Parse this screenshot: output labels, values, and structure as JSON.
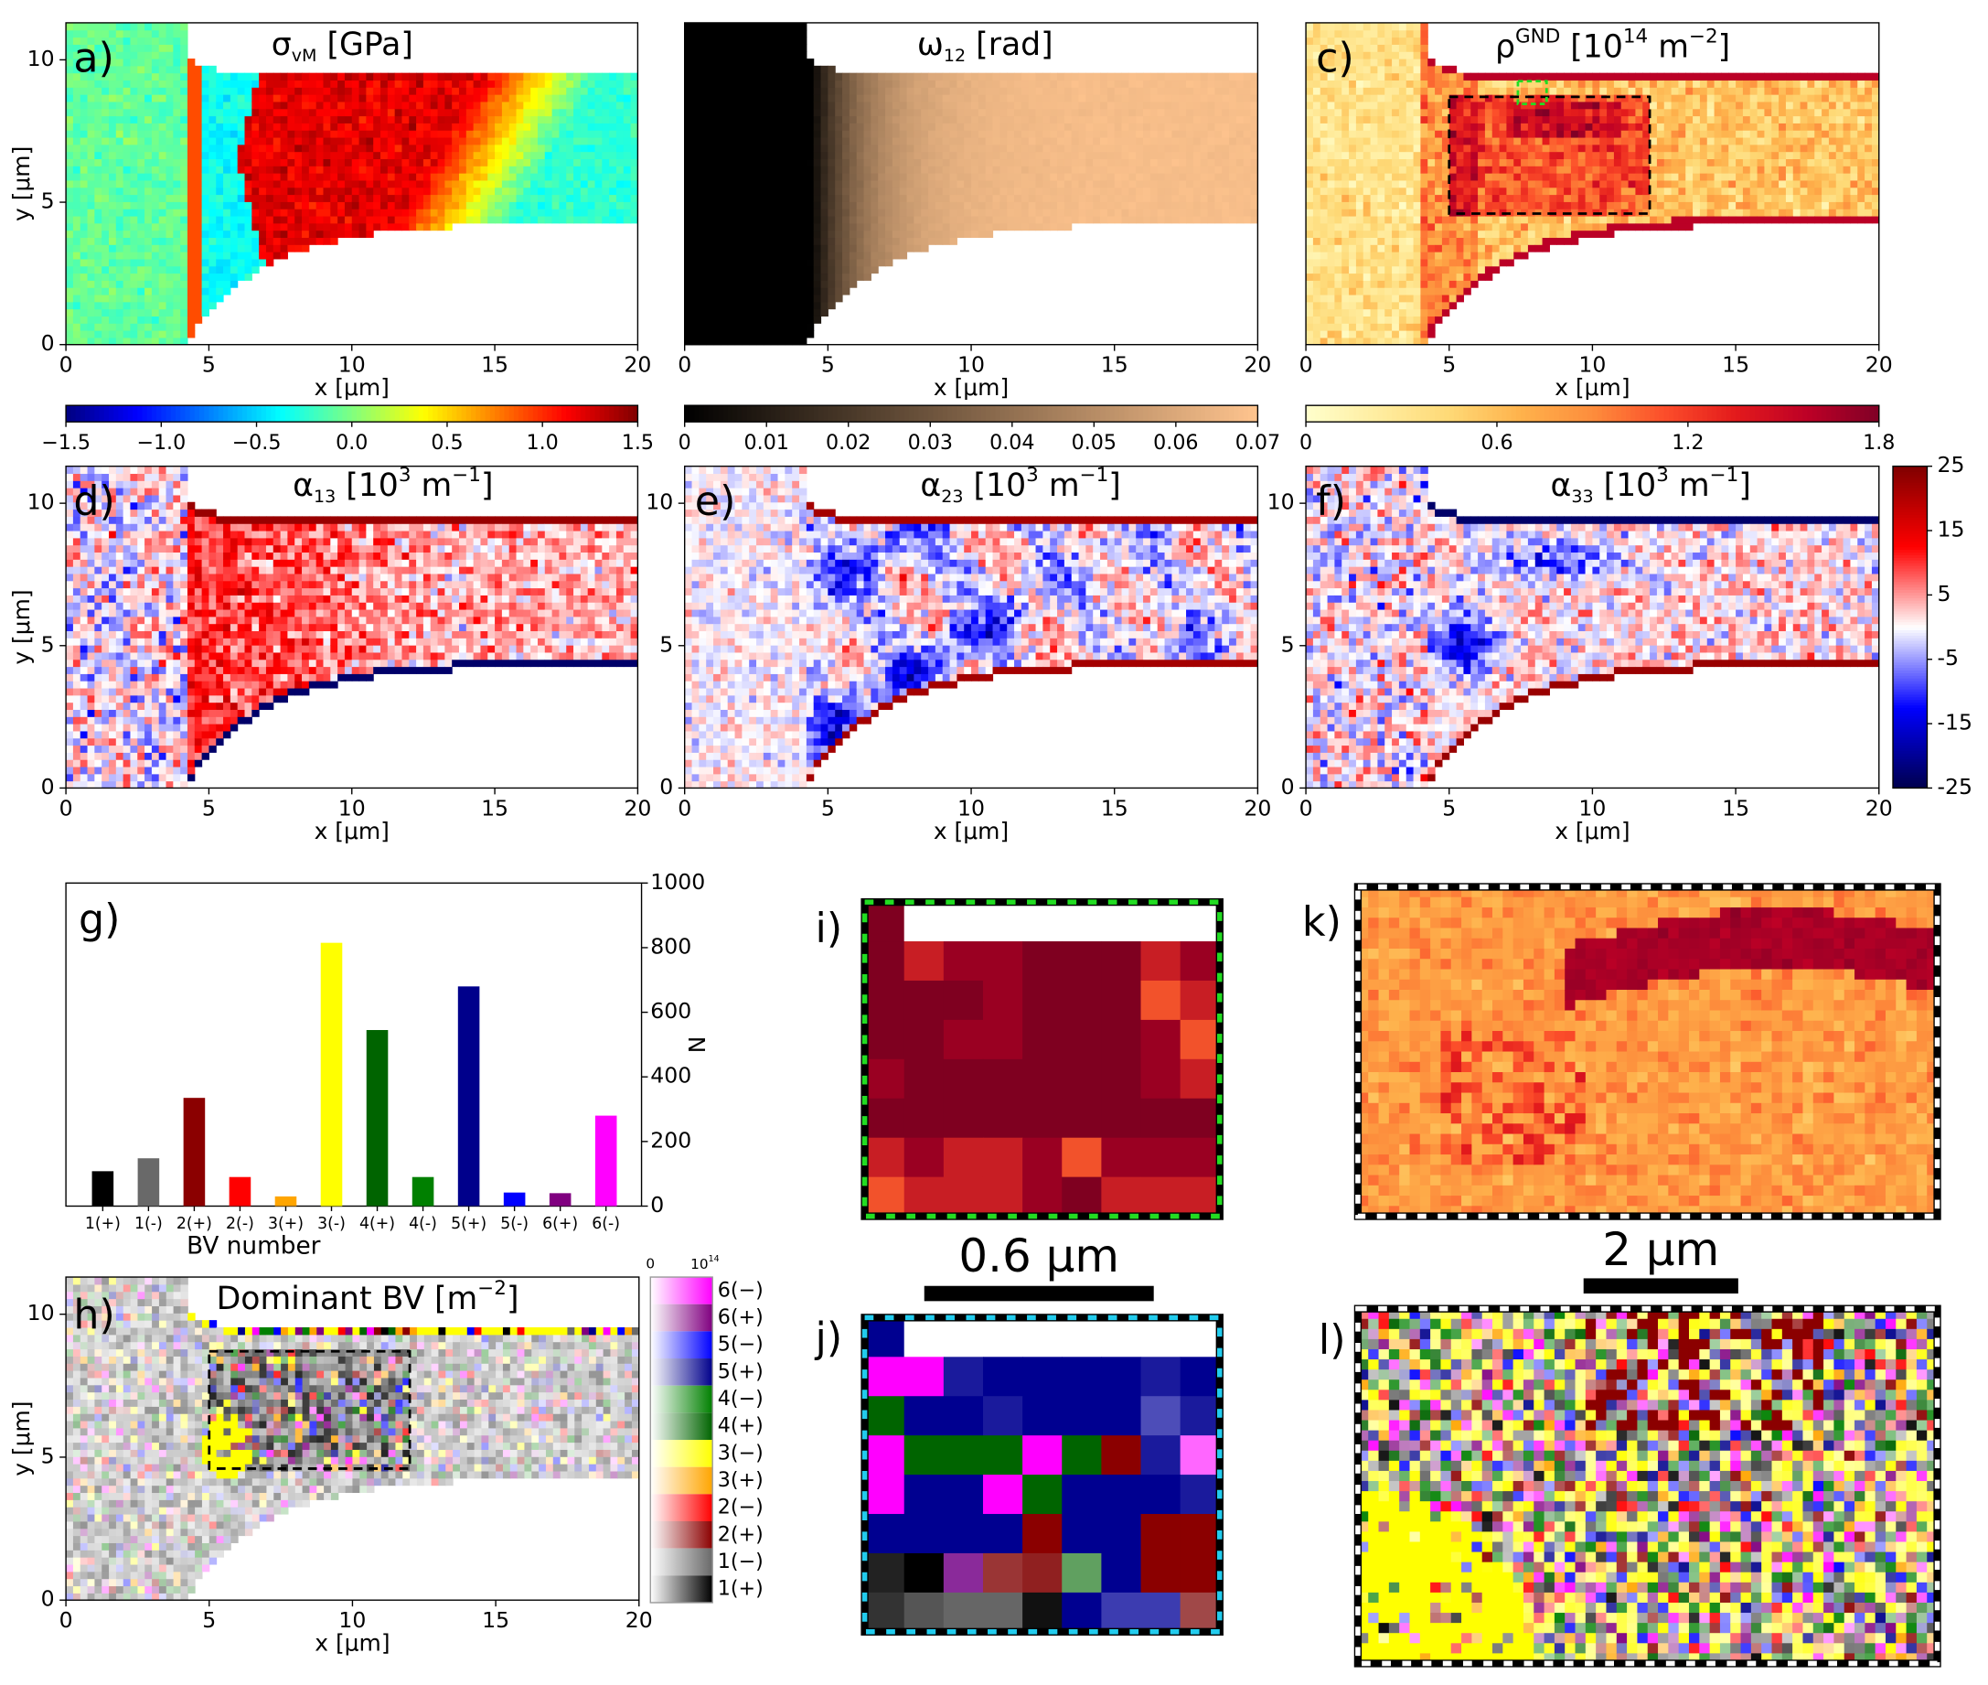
{
  "chart_data": [
    {
      "type": "heatmap",
      "label": "a)",
      "title": [
        {
          "text": "σ"
        },
        {
          "text": "vM",
          "pos": "sub"
        },
        {
          "text": "  [GPa]"
        }
      ],
      "xlabel": "x [μm]",
      "ylabel": "y [μm]",
      "xlim": [
        0,
        20
      ],
      "ylim": [
        0,
        11.3
      ],
      "xticks": [
        0,
        5,
        10,
        15,
        20
      ],
      "yticks": [
        0,
        5,
        10
      ],
      "colormap": "jet",
      "colorbar": {
        "lim": [
          -1.5,
          1.5
        ],
        "ticks": [
          {
            "value": -1.5,
            "label": "−1.5"
          },
          {
            "value": -1,
            "label": "−1.0"
          },
          {
            "value": -0.5,
            "label": "−0.5"
          },
          {
            "value": 0,
            "label": "0.0"
          },
          0.5,
          {
            "value": 1,
            "label": "1.0"
          },
          1.5
        ]
      }
    },
    {
      "type": "heatmap",
      "label": "b)",
      "title": [
        {
          "text": "ω"
        },
        {
          "text": "12",
          "pos": "sub"
        },
        {
          "text": " [rad]"
        }
      ],
      "xlabel": "x [μm]",
      "xlim": [
        0,
        20
      ],
      "ylim": [
        0,
        11.3
      ],
      "xticks": [
        0,
        5,
        10,
        15,
        20
      ],
      "colormap": "copper",
      "colorbar": {
        "lim": [
          0,
          0.07
        ],
        "ticks": [
          0,
          0.01,
          0.02,
          0.03,
          0.04,
          0.05,
          0.06,
          0.07
        ]
      }
    },
    {
      "type": "heatmap",
      "label": "c)",
      "title": [
        {
          "text": "ρ"
        },
        {
          "text": "GND",
          "pos": "sup"
        },
        {
          "text": " [10"
        },
        {
          "text": "14",
          "pos": "sup"
        },
        {
          "text": " m"
        },
        {
          "text": "−2",
          "pos": "sup"
        },
        {
          "text": "]"
        }
      ],
      "xlabel": "x [μm]",
      "xlim": [
        0,
        20
      ],
      "ylim": [
        0,
        11.3
      ],
      "xticks": [
        0,
        5,
        10,
        15,
        20
      ],
      "colormap": "YlOrRd",
      "colorbar": {
        "lim": [
          0,
          1.8
        ],
        "ticks": [
          0,
          0.6,
          1.2,
          1.8
        ]
      }
    },
    {
      "type": "heatmap",
      "label": "d)",
      "title": [
        {
          "text": "α"
        },
        {
          "text": "13",
          "pos": "sub"
        },
        {
          "text": " [10"
        },
        {
          "text": "3",
          "pos": "sup"
        },
        {
          "text": " m"
        },
        {
          "text": "−1",
          "pos": "sup"
        },
        {
          "text": "]"
        }
      ],
      "xlabel": "x [μm]",
      "ylabel": "y [μm]",
      "xlim": [
        0,
        20
      ],
      "ylim": [
        0,
        11.3
      ],
      "xticks": [
        0,
        5,
        10,
        15,
        20
      ],
      "yticks": [
        0,
        5,
        10
      ],
      "colormap": "seismic"
    },
    {
      "type": "heatmap",
      "label": "e)",
      "title": [
        {
          "text": "α"
        },
        {
          "text": "23",
          "pos": "sub"
        },
        {
          "text": " [10"
        },
        {
          "text": "3",
          "pos": "sup"
        },
        {
          "text": " m"
        },
        {
          "text": "−1",
          "pos": "sup"
        },
        {
          "text": "]"
        }
      ],
      "xlabel": "x [μm]",
      "xlim": [
        0,
        20
      ],
      "ylim": [
        0,
        11.3
      ],
      "xticks": [
        0,
        5,
        10,
        15,
        20
      ],
      "yticks": [
        0,
        5,
        10
      ],
      "colormap": "seismic"
    },
    {
      "type": "heatmap",
      "label": "f)",
      "title": [
        {
          "text": "α"
        },
        {
          "text": "33",
          "pos": "sub"
        },
        {
          "text": " [10"
        },
        {
          "text": "3",
          "pos": "sup"
        },
        {
          "text": " m"
        },
        {
          "text": "−1",
          "pos": "sup"
        },
        {
          "text": "]"
        }
      ],
      "xlabel": "x [μm]",
      "xlim": [
        0,
        20
      ],
      "ylim": [
        0,
        11.3
      ],
      "xticks": [
        0,
        5,
        10,
        15,
        20
      ],
      "yticks": [
        0,
        5,
        10
      ],
      "colormap": "seismic",
      "colorbar": {
        "lim": [
          -25,
          25
        ],
        "ticks": [
          25,
          15,
          5,
          -5,
          -15,
          -25
        ],
        "orientation": "vertical"
      }
    },
    {
      "type": "bar",
      "label": "g)",
      "xlabel": "BV number",
      "ylabel": "N",
      "categories": [
        "1(+)",
        "1(-)",
        "2(+)",
        "2(-)",
        "3(+)",
        "3(-)",
        "4(+)",
        "4(-)",
        "5(+)",
        "5(-)",
        "6(+)",
        "6(-)"
      ],
      "values": [
        108,
        148,
        335,
        90,
        30,
        815,
        545,
        90,
        680,
        42,
        40,
        280
      ],
      "colors": [
        "#000000",
        "#696969",
        "#8b0000",
        "#ff0000",
        "#ffa500",
        "#ffff00",
        "#006400",
        "#008000",
        "#00008b",
        "#0000ff",
        "#800080",
        "#ff00ff"
      ],
      "ylim": [
        0,
        1000
      ],
      "yticks": [
        0,
        200,
        400,
        600,
        800,
        1000
      ],
      "yaxis_side": "right"
    },
    {
      "type": "heatmap",
      "label": "h)",
      "title": [
        {
          "text": "Dominant BV [m"
        },
        {
          "text": "−2",
          "pos": "sup"
        },
        {
          "text": "]"
        }
      ],
      "xlabel": "x [μm]",
      "ylabel": "y [μm]",
      "xlim": [
        0,
        20
      ],
      "ylim": [
        0,
        11.3
      ],
      "xticks": [
        0,
        5,
        10,
        15,
        20
      ],
      "yticks": [
        0,
        5,
        10
      ],
      "colormap": "bv",
      "legend": {
        "min_label": "0",
        "max_label": [
          {
            "text": "10"
          },
          {
            "text": "14",
            "pos": "sup"
          }
        ],
        "entries": [
          "6(−)",
          "6(+)",
          "5(−)",
          "5(+)",
          "4(−)",
          "4(+)",
          "3(−)",
          "3(+)",
          "2(−)",
          "2(+)",
          "1(−)",
          "1(+)"
        ],
        "colors": [
          "#ff00ff",
          "#800080",
          "#0000ff",
          "#00008b",
          "#008000",
          "#006400",
          "#ffff00",
          "#ffa500",
          "#ff0000",
          "#8b0000",
          "#696969",
          "#000000"
        ]
      }
    },
    {
      "type": "heatmap",
      "label": "i)",
      "scalebar": "0.6 μm",
      "colormap": "YlOrRd"
    },
    {
      "type": "heatmap",
      "label": "j)",
      "colormap": "bv"
    },
    {
      "type": "heatmap",
      "label": "k)",
      "scalebar": "2 μm",
      "colormap": "YlOrRd"
    },
    {
      "type": "heatmap",
      "label": "l)",
      "colormap": "bv"
    }
  ]
}
